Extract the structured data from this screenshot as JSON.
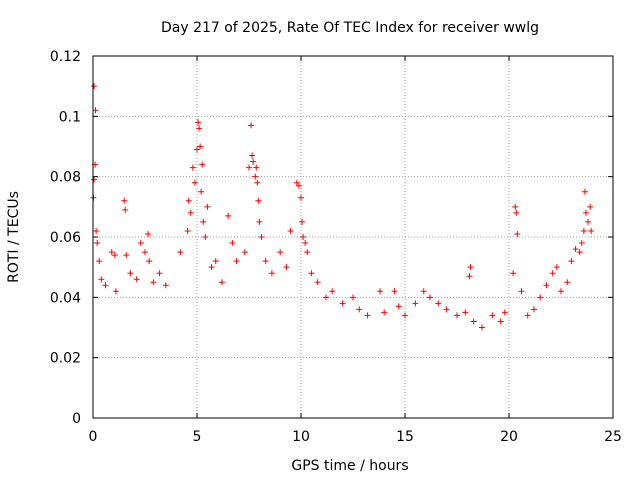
{
  "chart_data": {
    "type": "scatter",
    "title": "Day 217 of 2025, Rate Of TEC Index for receiver wwlg",
    "xlabel": "GPS time / hours",
    "ylabel": "ROTI / TECUs",
    "xlim": [
      0,
      25
    ],
    "ylim": [
      0,
      0.12
    ],
    "x_ticks": [
      0,
      5,
      10,
      15,
      20,
      25
    ],
    "y_ticks": [
      0,
      0.02,
      0.04,
      0.06,
      0.08,
      0.1,
      0.12
    ],
    "x_tick_labels": [
      "0",
      "5",
      "10",
      "15",
      "20",
      "25"
    ],
    "y_tick_labels": [
      "0",
      "0.02",
      "0.04",
      "0.06",
      "0.08",
      "0.1",
      "0.12"
    ],
    "grid": true,
    "marker": "plus",
    "color": "#ff0000",
    "series": [
      {
        "points": [
          [
            0.05,
            0.11
          ],
          [
            0.12,
            0.102
          ],
          [
            0.1,
            0.084
          ],
          [
            0.05,
            0.079
          ],
          [
            0.02,
            0.073
          ],
          [
            0.15,
            0.062
          ],
          [
            0.2,
            0.058
          ],
          [
            0.3,
            0.052
          ],
          [
            0.4,
            0.046
          ],
          [
            0.6,
            0.044
          ],
          [
            0.9,
            0.055
          ],
          [
            1.05,
            0.054
          ],
          [
            1.1,
            0.042
          ],
          [
            1.5,
            0.072
          ],
          [
            1.55,
            0.069
          ],
          [
            1.6,
            0.054
          ],
          [
            1.8,
            0.048
          ],
          [
            2.1,
            0.046
          ],
          [
            2.3,
            0.058
          ],
          [
            2.5,
            0.055
          ],
          [
            2.65,
            0.061
          ],
          [
            2.7,
            0.052
          ],
          [
            2.9,
            0.045
          ],
          [
            3.2,
            0.048
          ],
          [
            3.5,
            0.044
          ],
          [
            4.2,
            0.055
          ],
          [
            4.6,
            0.072
          ],
          [
            4.7,
            0.068
          ],
          [
            4.55,
            0.062
          ],
          [
            4.8,
            0.083
          ],
          [
            4.9,
            0.078
          ],
          [
            5.0,
            0.089
          ],
          [
            5.05,
            0.098
          ],
          [
            5.1,
            0.096
          ],
          [
            5.15,
            0.09
          ],
          [
            5.2,
            0.075
          ],
          [
            5.25,
            0.084
          ],
          [
            5.3,
            0.065
          ],
          [
            5.4,
            0.06
          ],
          [
            5.5,
            0.07
          ],
          [
            5.7,
            0.05
          ],
          [
            5.9,
            0.052
          ],
          [
            6.2,
            0.045
          ],
          [
            6.5,
            0.067
          ],
          [
            6.7,
            0.058
          ],
          [
            6.9,
            0.052
          ],
          [
            7.3,
            0.055
          ],
          [
            7.5,
            0.083
          ],
          [
            7.6,
            0.097
          ],
          [
            7.65,
            0.087
          ],
          [
            7.7,
            0.085
          ],
          [
            7.8,
            0.08
          ],
          [
            7.85,
            0.083
          ],
          [
            7.9,
            0.078
          ],
          [
            7.95,
            0.072
          ],
          [
            8.0,
            0.065
          ],
          [
            8.1,
            0.06
          ],
          [
            8.3,
            0.052
          ],
          [
            8.6,
            0.048
          ],
          [
            9.0,
            0.055
          ],
          [
            9.3,
            0.05
          ],
          [
            9.5,
            0.062
          ],
          [
            9.8,
            0.078
          ],
          [
            9.9,
            0.077
          ],
          [
            10.0,
            0.073
          ],
          [
            10.05,
            0.065
          ],
          [
            10.1,
            0.06
          ],
          [
            10.2,
            0.058
          ],
          [
            10.3,
            0.055
          ],
          [
            10.5,
            0.048
          ],
          [
            10.8,
            0.045
          ],
          [
            11.2,
            0.04
          ],
          [
            11.5,
            0.042
          ],
          [
            12.0,
            0.038
          ],
          [
            12.5,
            0.04
          ],
          [
            12.8,
            0.036
          ],
          [
            13.2,
            0.034
          ],
          [
            13.8,
            0.042
          ],
          [
            14.0,
            0.035
          ],
          [
            14.5,
            0.042
          ],
          [
            14.7,
            0.037
          ],
          [
            15.0,
            0.034
          ],
          [
            15.5,
            0.038
          ],
          [
            15.9,
            0.042
          ],
          [
            16.2,
            0.04
          ],
          [
            16.6,
            0.038
          ],
          [
            17.0,
            0.036
          ],
          [
            17.5,
            0.034
          ],
          [
            17.9,
            0.035
          ],
          [
            18.1,
            0.047
          ],
          [
            18.15,
            0.05
          ],
          [
            18.3,
            0.032
          ],
          [
            18.7,
            0.03
          ],
          [
            19.2,
            0.034
          ],
          [
            19.6,
            0.032
          ],
          [
            19.8,
            0.035
          ],
          [
            20.2,
            0.048
          ],
          [
            20.3,
            0.07
          ],
          [
            20.35,
            0.068
          ],
          [
            20.4,
            0.061
          ],
          [
            20.6,
            0.042
          ],
          [
            20.9,
            0.034
          ],
          [
            21.2,
            0.036
          ],
          [
            21.5,
            0.04
          ],
          [
            21.8,
            0.044
          ],
          [
            22.1,
            0.048
          ],
          [
            22.3,
            0.05
          ],
          [
            22.5,
            0.042
          ],
          [
            22.8,
            0.045
          ],
          [
            23.0,
            0.052
          ],
          [
            23.2,
            0.056
          ],
          [
            23.4,
            0.055
          ],
          [
            23.5,
            0.058
          ],
          [
            23.6,
            0.062
          ],
          [
            23.65,
            0.075
          ],
          [
            23.7,
            0.068
          ],
          [
            23.8,
            0.065
          ],
          [
            23.9,
            0.07
          ],
          [
            23.95,
            0.062
          ]
        ]
      }
    ]
  }
}
